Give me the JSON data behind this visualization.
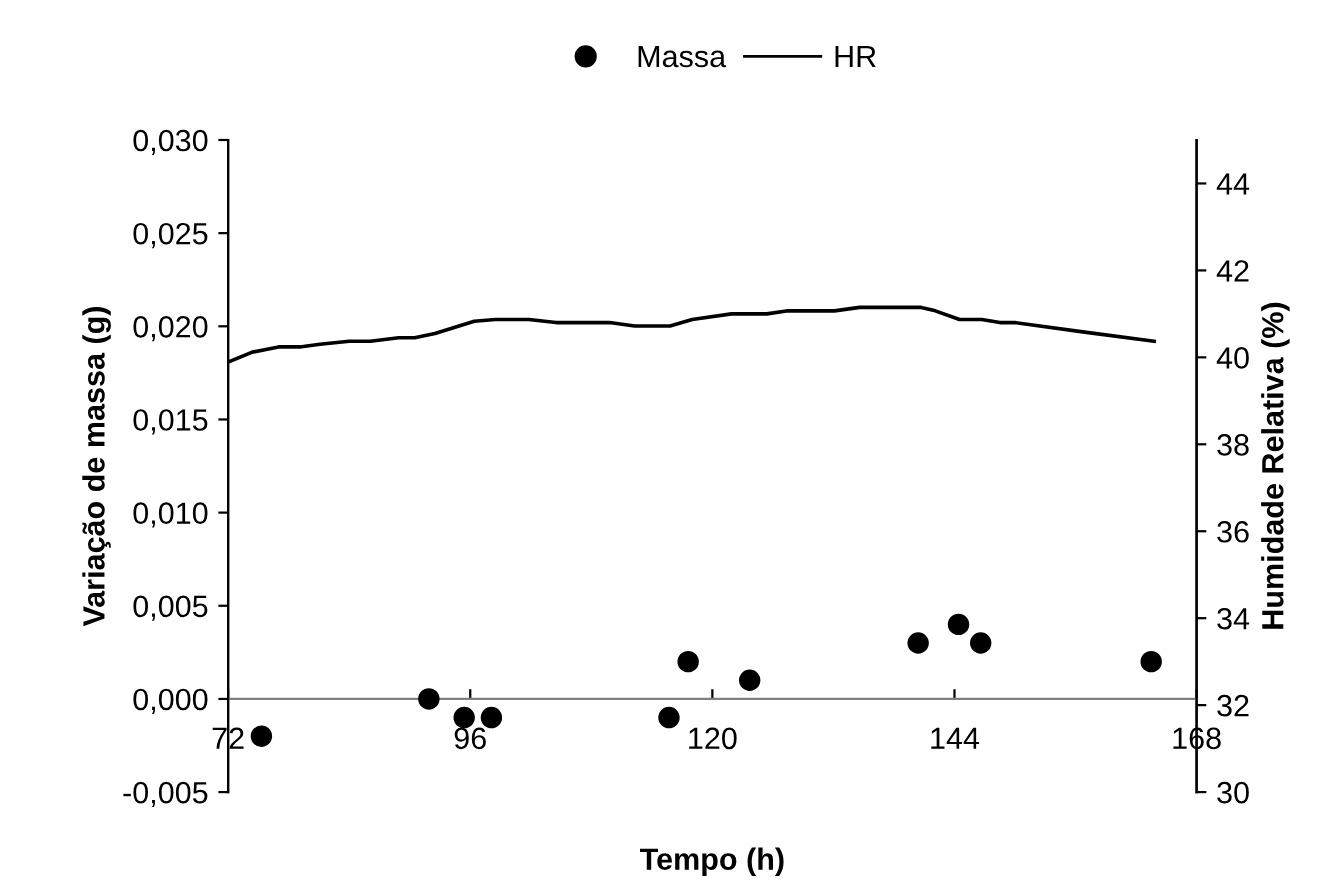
{
  "chart_data": {
    "type": "scatter",
    "xlabel": "Tempo (h)",
    "ylabel": "Variação de massa (g)",
    "y2label": "Humidade Relativa (%)",
    "xlim": [
      72,
      168
    ],
    "xticks": [
      72,
      96,
      120,
      144,
      168
    ],
    "ylim": [
      -0.005,
      0.03
    ],
    "yticks": [
      {
        "value": -0.005,
        "label": "-0,005"
      },
      {
        "value": 0,
        "label": "0,000"
      },
      {
        "value": 0.005,
        "label": "0,005"
      },
      {
        "value": 0.01,
        "label": "0,010"
      },
      {
        "value": 0.015,
        "label": "0,015"
      },
      {
        "value": 0.02,
        "label": "0,020"
      },
      {
        "value": 0.025,
        "label": "0,025"
      },
      {
        "value": 0.03,
        "label": "0,030"
      }
    ],
    "y2lim": [
      30,
      45
    ],
    "y2ticks": [
      30,
      32,
      34,
      36,
      38,
      40,
      42,
      44
    ],
    "legend": "top",
    "grid": false,
    "series": [
      {
        "name": "Massa",
        "marker": "circle",
        "color": "#000000",
        "x": [
          75.3,
          91.9,
          95.4,
          98.1,
          115.7,
          117.6,
          123.7,
          140.4,
          144.4,
          146.6,
          163.5
        ],
        "values": [
          -0.002,
          0.0,
          -0.001,
          -0.001,
          -0.001,
          0.002,
          0.001,
          0.003,
          0.004,
          0.003,
          0.002
        ]
      },
      {
        "name": "HR",
        "type": "line",
        "axis": "y2",
        "marker": "none",
        "line_style": "solid",
        "color": "#000000",
        "x": [
          72.1,
          74.4,
          77.0,
          79.1,
          81.1,
          84.0,
          86.1,
          88.9,
          90.5,
          92.5,
          96.4,
          98.5,
          101.8,
          104.5,
          109.8,
          112.3,
          115.8,
          118.0,
          121.9,
          125.4,
          127.5,
          132.1,
          134.6,
          140.6,
          142.1,
          144.5,
          146.7,
          148.5,
          150.0,
          156.9,
          163.8
        ],
        "values": [
          39.9,
          40.12,
          40.24,
          40.24,
          40.3,
          40.37,
          40.37,
          40.45,
          40.45,
          40.55,
          40.83,
          40.87,
          40.87,
          40.8,
          40.8,
          40.72,
          40.72,
          40.87,
          41.0,
          41.0,
          41.07,
          41.07,
          41.15,
          41.15,
          41.07,
          40.87,
          40.87,
          40.8,
          40.8,
          40.58,
          40.37
        ]
      }
    ]
  }
}
